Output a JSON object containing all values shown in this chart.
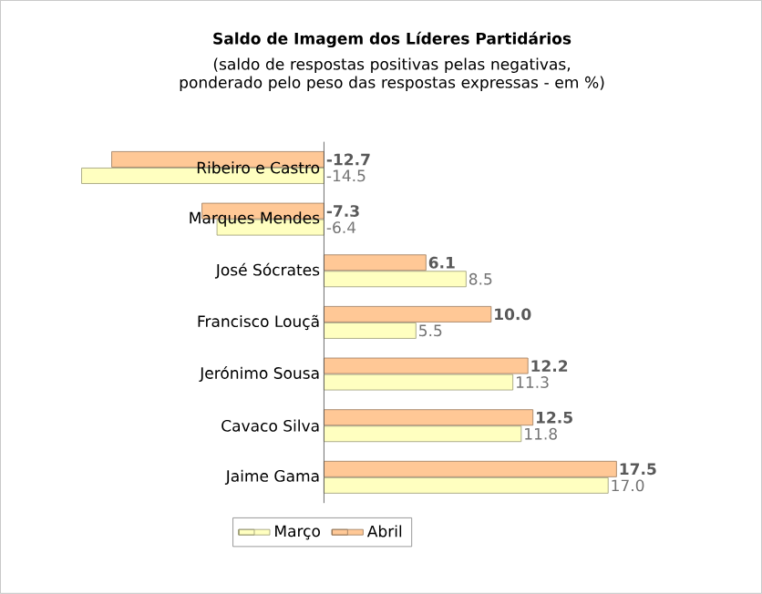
{
  "chart_data": {
    "type": "bar",
    "orientation": "horizontal",
    "title": "Saldo de Imagem dos Líderes Partidários",
    "subtitle": "(saldo de respostas positivas pelas negativas, ponderado pelo peso das respostas expressas - em %)",
    "categories": [
      "Ribeiro e Castro",
      "Marques Mendes",
      "José Sócrates",
      "Francisco Louçã",
      "Jerónimo Sousa",
      "Cavaco Silva",
      "Jaime Gama"
    ],
    "series": [
      {
        "name": "Março",
        "color": "#ffffc0",
        "values": [
          -14.5,
          -6.4,
          8.5,
          5.5,
          11.3,
          11.8,
          17.0
        ],
        "value_labels": [
          "-14.5",
          "-6.4",
          "8.5",
          "5.5",
          "11.3",
          "11.8",
          "17.0"
        ]
      },
      {
        "name": "Abril",
        "color": "#ffc896",
        "values": [
          -12.7,
          -7.3,
          6.1,
          10.0,
          12.2,
          12.5,
          17.5
        ],
        "value_labels": [
          "-12.7",
          "-7.3",
          "6.1",
          "10.0",
          "12.2",
          "12.5",
          "17.5"
        ]
      }
    ],
    "legend": "bottom"
  }
}
